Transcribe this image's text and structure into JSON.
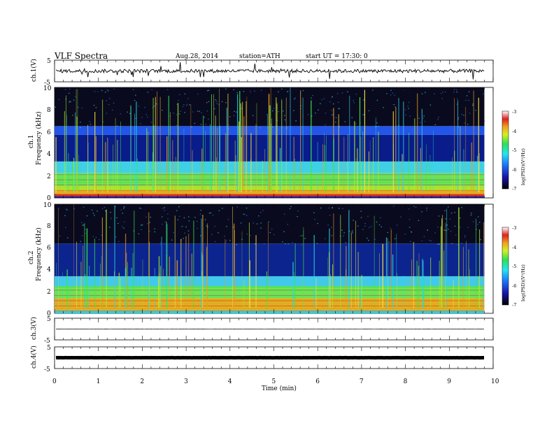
{
  "header": {
    "title": "VLF  Spectra",
    "date": "Aug.28, 2014",
    "station": "station=ATH",
    "start": "start  UT  =   17:30: 0"
  },
  "labels": {
    "ch1": "ch.1(V)",
    "spec1_ch": "ch.1",
    "spec2_ch": "ch.2",
    "freq": "Frequency  (kHz)",
    "ch3": "ch.3(V)",
    "ch4": "ch.4(V)",
    "xlabel": "Time  (min)",
    "colorbar": "log(PSD)(V²/Hz)"
  },
  "chart_data": [
    {
      "type": "line",
      "name": "ch.1(V)",
      "x_range": [
        0,
        10
      ],
      "ylim": [
        -5,
        5
      ],
      "y_ticks": [
        "5",
        "-5"
      ],
      "baseline": 0,
      "data_extent_min": 9.8
    },
    {
      "type": "heatmap",
      "name": "ch.1 spectrogram",
      "x_range": [
        0,
        10
      ],
      "ylim": [
        0,
        10
      ],
      "y_ticks": [
        "0",
        "2",
        "4",
        "6",
        "8",
        "10"
      ],
      "xlabel": "Time  (min)",
      "ylabel": "Frequency  (kHz)",
      "colorbar": {
        "label": "log(PSD)(V²/Hz)",
        "range": [
          -7,
          -3
        ],
        "ticks": [
          "-3",
          "-4",
          "-5",
          "-6",
          "-7"
        ]
      },
      "bands": [
        {
          "f": [
            0.0,
            0.15
          ],
          "color": "#1e1a8c"
        },
        {
          "f": [
            0.15,
            0.35
          ],
          "color": "#d8261b"
        },
        {
          "f": [
            0.35,
            0.7
          ],
          "color": "#e8a21b"
        },
        {
          "f": [
            0.7,
            1.1
          ],
          "color": "#a8de2a"
        },
        {
          "f": [
            1.1,
            2.2
          ],
          "color": "#55e05a"
        },
        {
          "f": [
            2.2,
            3.3
          ],
          "color": "#3fd0e6"
        },
        {
          "f": [
            3.3,
            5.7
          ],
          "color": "#091c8a"
        },
        {
          "f": [
            5.7,
            6.5
          ],
          "color": "#2255e8"
        },
        {
          "f": [
            6.5,
            10.0
          ],
          "color": "#0a0a1e"
        }
      ]
    },
    {
      "type": "heatmap",
      "name": "ch.2 spectrogram",
      "x_range": [
        0,
        10
      ],
      "ylim": [
        0,
        10
      ],
      "y_ticks": [
        "0",
        "2",
        "4",
        "6",
        "8",
        "10"
      ],
      "xlabel": "Time  (min)",
      "ylabel": "Frequency  (kHz)",
      "colorbar": {
        "label": "log(PSD)(V²/Hz)",
        "range": [
          -7,
          -3
        ],
        "ticks": [
          "-3",
          "-4",
          "-5",
          "-6",
          "-7"
        ]
      },
      "bands": [
        {
          "f": [
            0.0,
            0.25
          ],
          "color": "#2bd2e0"
        },
        {
          "f": [
            0.25,
            1.4
          ],
          "color": "#e2a21c"
        },
        {
          "f": [
            1.4,
            2.5
          ],
          "color": "#58e25a"
        },
        {
          "f": [
            2.5,
            3.4
          ],
          "color": "#42c8ea"
        },
        {
          "f": [
            3.4,
            6.4
          ],
          "color": "#0c248e"
        },
        {
          "f": [
            6.4,
            10.0
          ],
          "color": "#0a0a1e"
        }
      ]
    },
    {
      "type": "line",
      "name": "ch.3(V)",
      "x_range": [
        0,
        10
      ],
      "ylim": [
        -5,
        5
      ],
      "y_ticks": [
        "5",
        "-5"
      ],
      "baseline": 0
    },
    {
      "type": "line",
      "name": "ch.4(V)",
      "x_range": [
        0,
        10
      ],
      "ylim": [
        -5,
        5
      ],
      "y_ticks": [
        "5",
        "-5"
      ],
      "baseline": 0,
      "xlabel": "Time  (min)",
      "x_ticks": [
        "0",
        "1",
        "2",
        "3",
        "4",
        "5",
        "6",
        "7",
        "8",
        "9",
        "10"
      ]
    }
  ]
}
